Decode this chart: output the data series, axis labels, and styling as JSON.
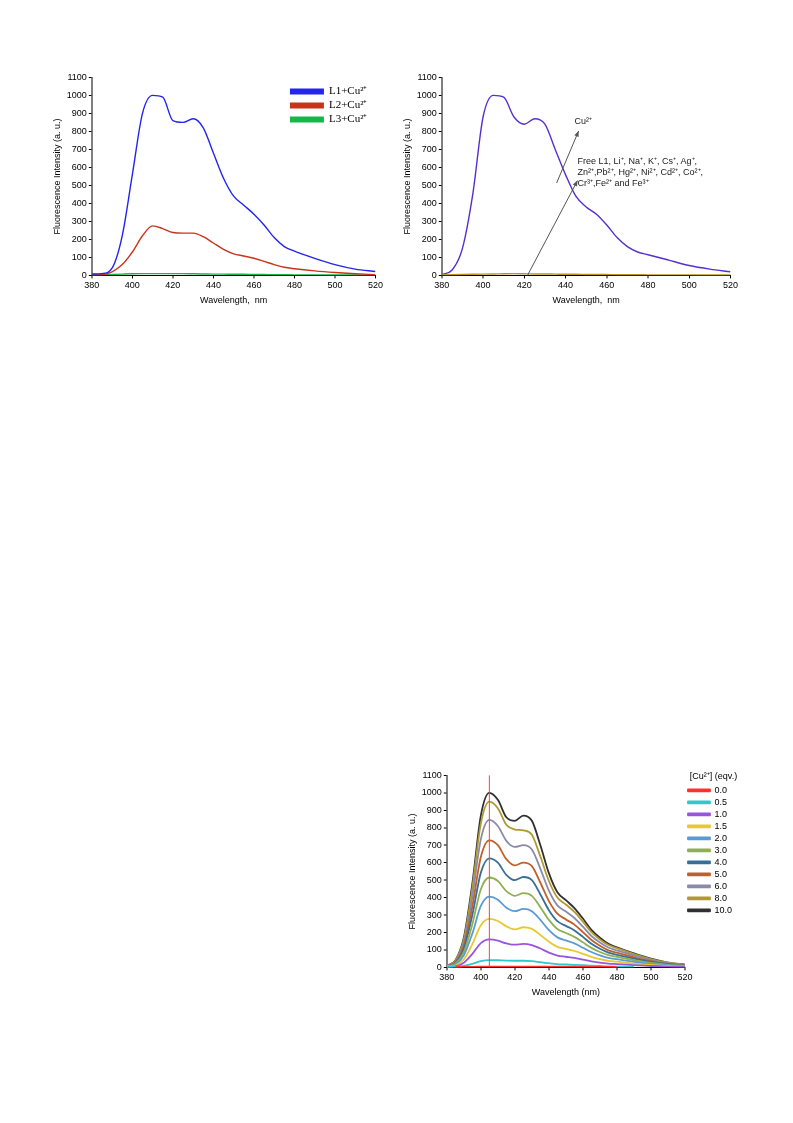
{
  "chart_data": [
    {
      "type": "line",
      "xlabel": "Wavelength,  nm",
      "ylabel": "Fluorescence Intensity (a. u.)",
      "xlim": [
        380,
        520
      ],
      "xticks": [
        380,
        400,
        420,
        440,
        460,
        480,
        500,
        520
      ],
      "ylim": [
        0,
        1100
      ],
      "yticks": [
        0,
        100,
        200,
        300,
        400,
        500,
        600,
        700,
        800,
        900,
        1000,
        1100
      ],
      "grid": false,
      "legend": "top right",
      "x": [
        380,
        385,
        390,
        395,
        400,
        405,
        410,
        415,
        420,
        425,
        430,
        435,
        440,
        445,
        450,
        455,
        460,
        465,
        470,
        475,
        480,
        490,
        500,
        510,
        520
      ],
      "series": [
        {
          "name": "L1+Cu²⁺",
          "color": "#2424f0",
          "values": [
            8,
            10,
            40,
            220,
            560,
            900,
            1000,
            990,
            860,
            850,
            870,
            820,
            680,
            540,
            440,
            390,
            340,
            280,
            210,
            160,
            135,
            95,
            60,
            35,
            22
          ]
        },
        {
          "name": "L2+Cu²⁺",
          "color": "#c8341a",
          "values": [
            5,
            5,
            20,
            60,
            130,
            220,
            275,
            260,
            238,
            235,
            235,
            215,
            180,
            145,
            120,
            108,
            95,
            78,
            60,
            45,
            37,
            25,
            16,
            9,
            4
          ]
        },
        {
          "name": "L3+Cu²⁺",
          "color": "#12b84a",
          "values": [
            2,
            3,
            5,
            7,
            9,
            10,
            10,
            10,
            10,
            10,
            9,
            8,
            7,
            7,
            6,
            6,
            5,
            5,
            4,
            4,
            3,
            3,
            2,
            2,
            1
          ]
        }
      ]
    },
    {
      "type": "line",
      "xlabel": "Wavelength,  nm",
      "ylabel": "Fluorescence Intensity (a. u.)",
      "xlim": [
        380,
        520
      ],
      "xticks": [
        380,
        400,
        420,
        440,
        460,
        480,
        500,
        520
      ],
      "ylim": [
        0,
        1100
      ],
      "yticks": [
        0,
        100,
        200,
        300,
        400,
        500,
        600,
        700,
        800,
        900,
        1000,
        1100
      ],
      "grid": false,
      "x": [
        380,
        385,
        390,
        395,
        400,
        405,
        410,
        415,
        420,
        425,
        430,
        435,
        440,
        445,
        450,
        455,
        460,
        465,
        470,
        475,
        480,
        490,
        500,
        510,
        520
      ],
      "series": [
        {
          "color": "#b8961e",
          "values": [
            3,
            4,
            5,
            6,
            7,
            8,
            9,
            10,
            9,
            8,
            8,
            7,
            6,
            6,
            5,
            5,
            5,
            4,
            4,
            4,
            3,
            3,
            3,
            2,
            2
          ]
        },
        {
          "color": "#5530d0",
          "values": [
            5,
            30,
            150,
            450,
            880,
            1000,
            990,
            880,
            840,
            870,
            840,
            700,
            560,
            440,
            380,
            340,
            280,
            210,
            160,
            130,
            115,
            85,
            55,
            35,
            20
          ]
        }
      ],
      "annotations": [
        "Cu²⁺",
        "Free L1, Li⁺, Na⁺, K⁺, Cs⁺, Ag⁺,  Zn²⁺,Pb²⁺, Hg²⁺, Ni²⁺, Cd²⁺, Co²⁺, Cr³⁺,Fe²⁺ and Fe³⁺"
      ]
    },
    {
      "type": "line",
      "xlabel": "Wavelength (nm)",
      "ylabel": "Fluorescence Intensity (a. u.)",
      "legend_title": "[Cu²⁺] (eqv.)",
      "xlim": [
        380,
        520
      ],
      "xticks": [
        380,
        400,
        420,
        440,
        460,
        480,
        500,
        520
      ],
      "ylim": [
        0,
        1100
      ],
      "yticks": [
        0,
        100,
        200,
        300,
        400,
        500,
        600,
        700,
        800,
        900,
        1000,
        1100
      ],
      "grid": false,
      "legend": "right",
      "x": [
        380,
        385,
        390,
        395,
        400,
        405,
        410,
        415,
        420,
        425,
        430,
        435,
        440,
        445,
        450,
        455,
        460,
        465,
        470,
        475,
        480,
        490,
        500,
        510,
        520
      ],
      "ref_lines": [
        {
          "axis": "x",
          "value": 405,
          "color": "#ff4040"
        }
      ],
      "series": [
        {
          "name": "0.0",
          "color": "#ff3030",
          "values": [
            null,
            2,
            3,
            3,
            4,
            5,
            5,
            5,
            5,
            5,
            5,
            5,
            4,
            4,
            4,
            4,
            3,
            3,
            3,
            3,
            2,
            null,
            null,
            null,
            null
          ]
        },
        {
          "name": "0.5",
          "color": "#30c8c8",
          "values": [
            2,
            3,
            8,
            20,
            36,
            42,
            41,
            39,
            38,
            38,
            36,
            30,
            24,
            19,
            17,
            15,
            13,
            10,
            8,
            6,
            5,
            4,
            null,
            null,
            null
          ]
        },
        {
          "name": "1.0",
          "color": "#9955dd",
          "values": [
            3,
            6,
            27,
            77,
            139,
            160,
            153,
            137,
            130,
            135,
            128,
            108,
            85,
            68,
            61,
            54,
            45,
            35,
            27,
            22,
            19,
            13,
            8,
            5,
            3
          ]
        },
        {
          "name": "1.5",
          "color": "#e8c830",
          "values": [
            4,
            11,
            47,
            133,
            242,
            278,
            266,
            235,
            218,
            230,
            221,
            186,
            147,
            118,
            106,
            94,
            78,
            60,
            47,
            38,
            33,
            22,
            14,
            8,
            5
          ]
        },
        {
          "name": "2.0",
          "color": "#5b9bd5",
          "values": [
            5,
            16,
            69,
            194,
            352,
            405,
            388,
            342,
            322,
            335,
            322,
            272,
            213,
            172,
            155,
            138,
            113,
            88,
            69,
            55,
            47,
            32,
            20,
            12,
            7
          ]
        },
        {
          "name": "3.0",
          "color": "#8fb050",
          "values": [
            6,
            21,
            88,
            247,
            448,
            515,
            495,
            437,
            410,
            425,
            410,
            345,
            272,
            220,
            197,
            175,
            144,
            112,
            88,
            70,
            60,
            41,
            26,
            15,
            9
          ]
        },
        {
          "name": "4.0",
          "color": "#3a6f95",
          "values": [
            7,
            25,
            106,
            300,
            543,
            625,
            600,
            530,
            500,
            518,
            500,
            418,
            328,
            265,
            238,
            212,
            175,
            135,
            107,
            85,
            72,
            50,
            31,
            18,
            10
          ]
        },
        {
          "name": "5.0",
          "color": "#c0602a",
          "values": [
            8,
            29,
            124,
            350,
            633,
            728,
            700,
            620,
            585,
            600,
            580,
            485,
            380,
            308,
            275,
            245,
            202,
            157,
            124,
            98,
            84,
            58,
            36,
            20,
            12
          ]
        },
        {
          "name": "6.0",
          "color": "#8a8aaa",
          "values": [
            9,
            34,
            144,
            405,
            735,
            845,
            810,
            725,
            690,
            700,
            675,
            565,
            440,
            355,
            320,
            283,
            233,
            180,
            143,
            114,
            97,
            68,
            42,
            24,
            14
          ]
        },
        {
          "name": "8.0",
          "color": "#b09a30",
          "values": [
            10,
            38,
            160,
            455,
            825,
            950,
            912,
            817,
            790,
            785,
            760,
            635,
            495,
            400,
            360,
            318,
            262,
            202,
            160,
            128,
            110,
            76,
            48,
            27,
            15
          ]
        },
        {
          "name": "10.0",
          "color": "#303030",
          "values": [
            10,
            40,
            170,
            480,
            870,
            1000,
            960,
            860,
            840,
            870,
            840,
            700,
            540,
            430,
            385,
            340,
            280,
            215,
            170,
            135,
            115,
            80,
            50,
            28,
            16
          ]
        }
      ]
    }
  ]
}
